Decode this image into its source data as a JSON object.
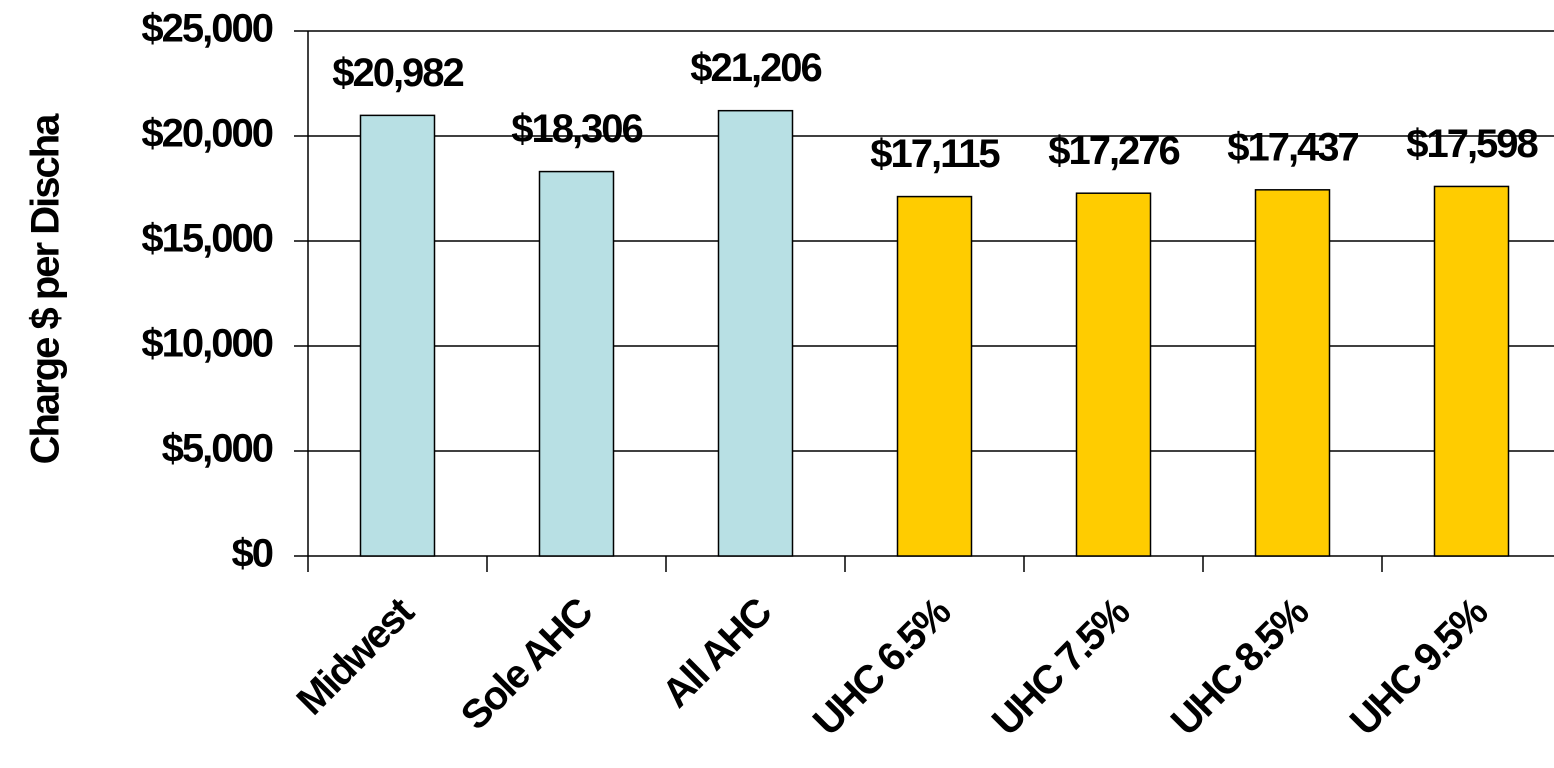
{
  "chart_data": {
    "type": "bar",
    "y_label": "Charge $ per Discha",
    "categories": [
      "Midwest",
      "Sole AHC",
      "All AHC",
      "UHC 6.5%",
      "UHC 7.5%",
      "UHC 8.5%",
      "UHC 9.5%"
    ],
    "values": [
      20982,
      18306,
      21206,
      17115,
      17276,
      17437,
      17598
    ],
    "value_labels": [
      "$20,982",
      "$18,306",
      "$21,206",
      "$17,115",
      "$17,276",
      "$17,437",
      "$17,598"
    ],
    "colors": [
      "#b8e0e4",
      "#b8e0e4",
      "#b8e0e4",
      "#ffcc00",
      "#ffcc00",
      "#ffcc00",
      "#ffcc00"
    ],
    "ylim": [
      0,
      25000
    ],
    "yticks": [
      {
        "value": 0,
        "label": "$0"
      },
      {
        "value": 5000,
        "label": "$5,000"
      },
      {
        "value": 10000,
        "label": "$10,000"
      },
      {
        "value": 15000,
        "label": "$15,000"
      },
      {
        "value": 20000,
        "label": "$20,000"
      },
      {
        "value": 25000,
        "label": "$25,000"
      }
    ],
    "grid": true
  }
}
